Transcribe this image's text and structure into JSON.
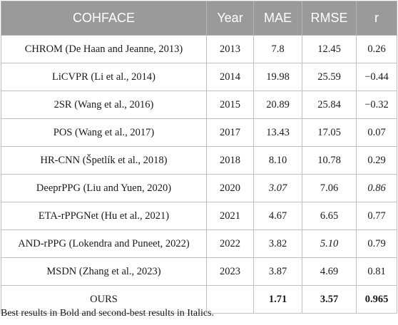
{
  "table": {
    "headers": [
      "COHFACE",
      "Year",
      "MAE",
      "RMSE",
      "r"
    ],
    "rows": [
      {
        "method": "CHROM (De Haan and Jeanne, 2013)",
        "year": "2013",
        "mae": "7.8",
        "rmse": "12.45",
        "r": "0.26"
      },
      {
        "method": "LiCVPR (Li et al., 2014)",
        "year": "2014",
        "mae": "19.98",
        "rmse": "25.59",
        "r": "−0.44"
      },
      {
        "method": "2SR (Wang et al., 2016)",
        "year": "2015",
        "mae": "20.89",
        "rmse": "25.84",
        "r": "−0.32"
      },
      {
        "method": "POS (Wang et al., 2017)",
        "year": "2017",
        "mae": "13.43",
        "rmse": "17.05",
        "r": "0.07"
      },
      {
        "method": "HR-CNN (Špetlík et al., 2018)",
        "year": "2018",
        "mae": "8.10",
        "rmse": "10.78",
        "r": "0.29"
      },
      {
        "method": "DeeprPPG (Liu and Yuen, 2020)",
        "year": "2020",
        "mae": "3.07",
        "rmse": "7.06",
        "r": "0.86"
      },
      {
        "method": "ETA-rPPGNet (Hu et al., 2021)",
        "year": "2021",
        "mae": "4.67",
        "rmse": "6.65",
        "r": "0.77"
      },
      {
        "method": "AND-rPPG (Lokendra and Puneet, 2022)",
        "year": "2022",
        "mae": "3.82",
        "rmse": "5.10",
        "r": "0.79"
      },
      {
        "method": "MSDN (Zhang et al., 2023)",
        "year": "2023",
        "mae": "3.87",
        "rmse": "4.69",
        "r": "0.81"
      },
      {
        "method": "OURS",
        "year": "",
        "mae": "1.71",
        "rmse": "3.57",
        "r": "0.965"
      }
    ]
  },
  "footnote": "Best results in Bold and second-best results in Italics."
}
